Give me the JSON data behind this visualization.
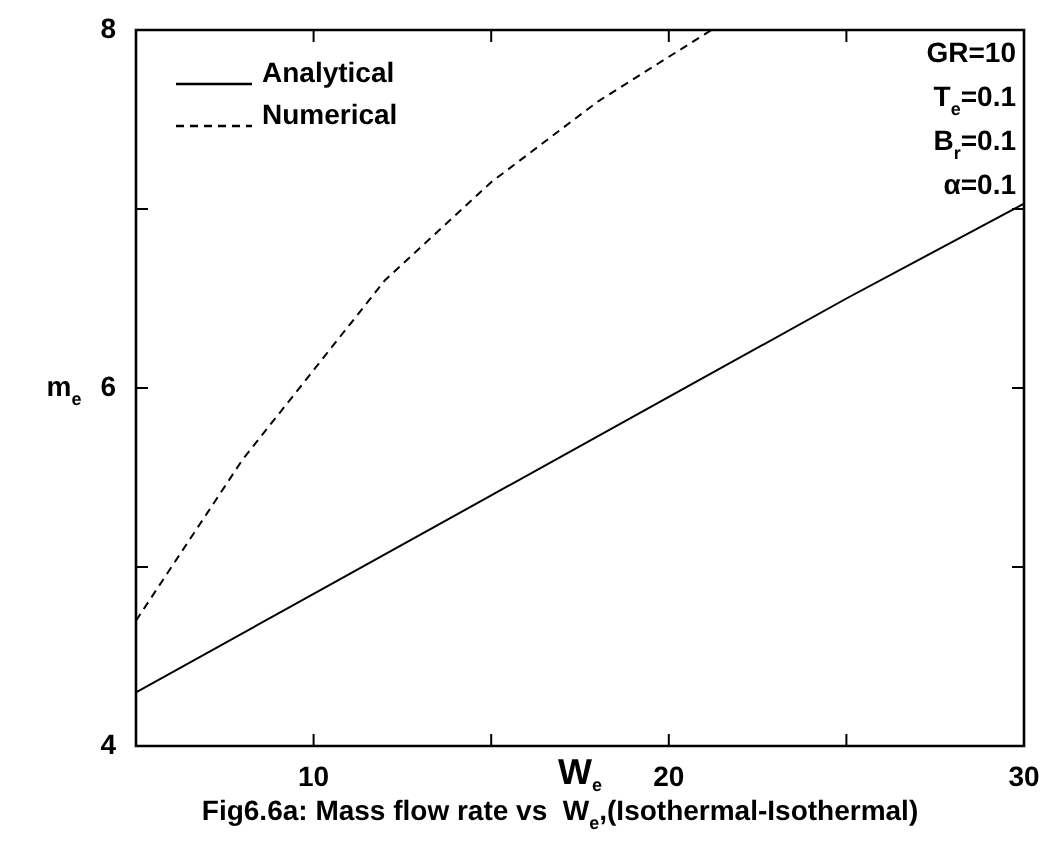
{
  "chart_data": {
    "type": "line",
    "xlabel": "W$_{e}$",
    "ylabel": "m$_{e}$",
    "annotations": [
      "GR=10",
      "T$_{e}$=0.1",
      "B$_{r}$=0.1",
      "α=0.1",
      "Fig6.6a: Mass flow rate vs  W$_{e}$,(Isothermal-Isothermal)"
    ],
    "xlim": [
      5,
      30
    ],
    "xticks": [
      10,
      {
        "value": 15,
        "label": null
      },
      20,
      {
        "value": 25,
        "label": null
      },
      30
    ],
    "ylim": [
      4,
      8
    ],
    "yticks": [
      4,
      {
        "value": 5,
        "label": null
      },
      6,
      {
        "value": 7,
        "label": null
      },
      8
    ],
    "grid": false,
    "legend": "top left",
    "marker": "none",
    "series": [
      {
        "name": "Analytical",
        "color": "#000000",
        "line_style": "solid",
        "x": [
          5,
          10,
          15,
          20,
          25,
          30
        ],
        "values": [
          4.3,
          4.85,
          5.4,
          5.95,
          6.5,
          7.03
        ]
      },
      {
        "name": "Numerical",
        "color": "#000000",
        "line_style": "dashed",
        "x": [
          5,
          8,
          10,
          12,
          15,
          18,
          21.2
        ],
        "values": [
          4.7,
          5.6,
          6.1,
          6.6,
          7.15,
          7.6,
          8.0
        ]
      }
    ]
  }
}
